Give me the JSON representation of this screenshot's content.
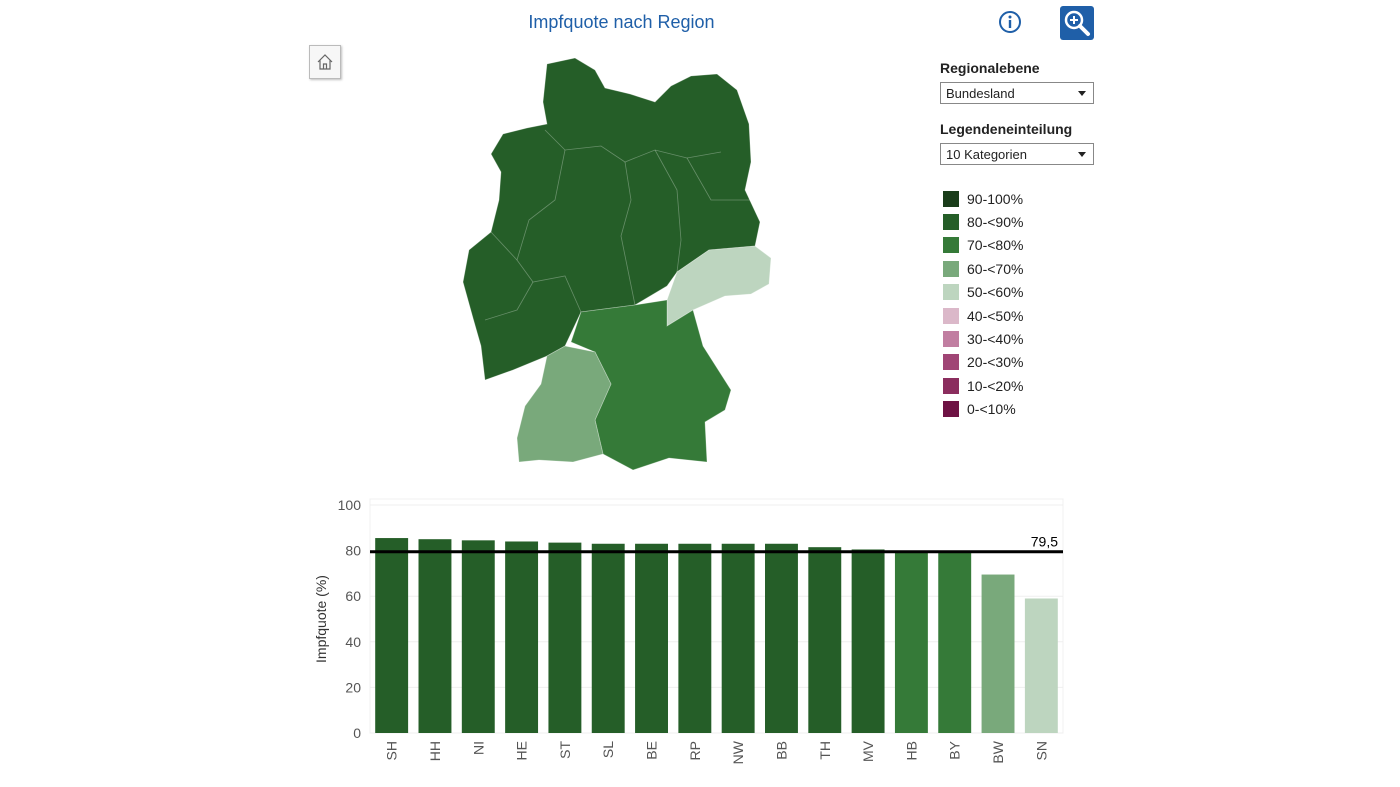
{
  "header": {
    "title": "Impfquote nach Region"
  },
  "toolbar": {
    "info_icon": "info-icon",
    "zoom_icon": "zoom-in-icon",
    "home_icon": "home-icon"
  },
  "controls": {
    "region_label": "Regionalebene",
    "region_value": "Bundesland",
    "legend_label": "Legendeneinteilung",
    "legend_value": "10 Kategorien"
  },
  "legend": [
    {
      "label": "90-100%",
      "color": "#1a3d1a"
    },
    {
      "label": "80-<90%",
      "color": "#255e28"
    },
    {
      "label": "70-<80%",
      "color": "#357a38"
    },
    {
      "label": "60-<70%",
      "color": "#79a97b"
    },
    {
      "label": "50-<60%",
      "color": "#bdd5bf"
    },
    {
      "label": "40-<50%",
      "color": "#dbb8c9"
    },
    {
      "label": "30-<40%",
      "color": "#c17ea1"
    },
    {
      "label": "20-<30%",
      "color": "#a04575"
    },
    {
      "label": "10-<20%",
      "color": "#8b2d5e"
    },
    {
      "label": "0-<10%",
      "color": "#6e1244"
    }
  ],
  "chart_data": {
    "type": "bar",
    "ylabel": "Impfquote (%)",
    "ylim": [
      0,
      100
    ],
    "yticks": [
      0,
      20,
      40,
      60,
      80,
      100
    ],
    "categories": [
      "SH",
      "HH",
      "NI",
      "HE",
      "ST",
      "SL",
      "BE",
      "RP",
      "NW",
      "BB",
      "TH",
      "MV",
      "HB",
      "BY",
      "BW",
      "SN"
    ],
    "values": [
      85.5,
      85.0,
      84.5,
      84.0,
      83.5,
      83.0,
      83.0,
      83.0,
      83.0,
      83.0,
      81.5,
      80.5,
      79.5,
      79.5,
      69.5,
      59.0
    ],
    "colors": [
      "#255e28",
      "#255e28",
      "#255e28",
      "#255e28",
      "#255e28",
      "#255e28",
      "#255e28",
      "#255e28",
      "#255e28",
      "#255e28",
      "#255e28",
      "#255e28",
      "#357a38",
      "#357a38",
      "#79a97b",
      "#bdd5bf"
    ],
    "reference_line": {
      "value": 79.5,
      "label": "79,5"
    },
    "grid": true
  }
}
